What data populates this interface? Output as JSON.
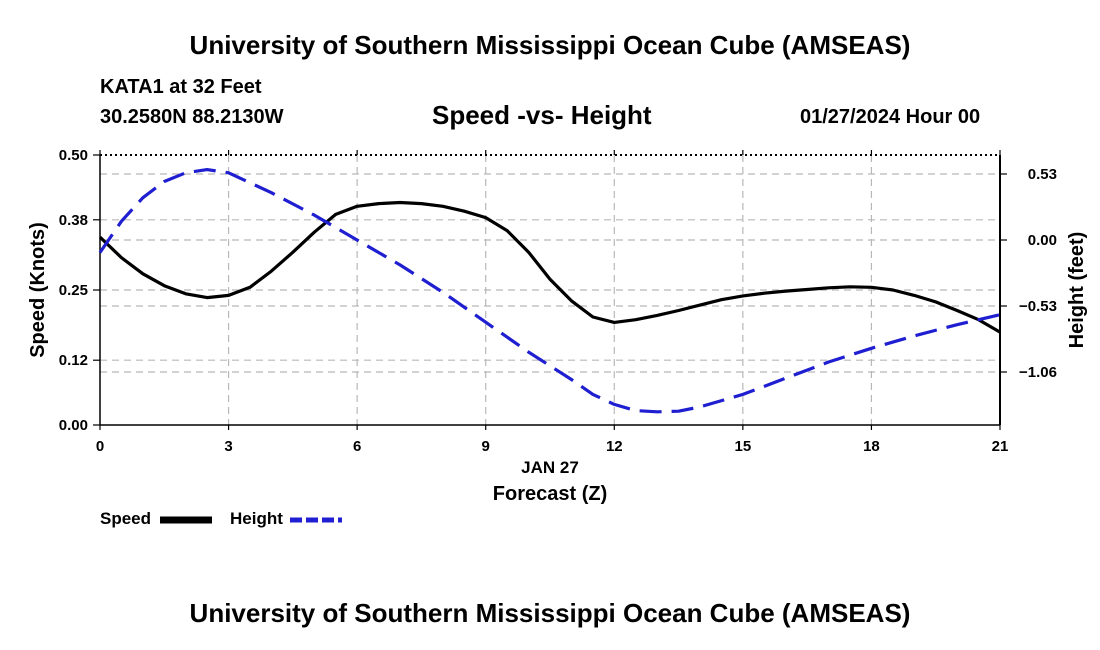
{
  "header": {
    "title": "University of Southern Mississippi Ocean Cube (AMSEAS)",
    "station": "KATA1 at 32 Feet",
    "coordinates": "30.2580N  88.2130W",
    "subtitle": "Speed -vs- Height",
    "datetime": "01/27/2024 Hour 00"
  },
  "footer": {
    "title": "University of Southern Mississippi Ocean Cube (AMSEAS)"
  },
  "chart_data": {
    "type": "line",
    "title": "Speed -vs- Height",
    "xlabel": "Forecast (Z)",
    "xlabel_date": "JAN 27",
    "x_ticks": [
      0,
      3,
      6,
      9,
      12,
      15,
      18,
      21
    ],
    "xlim": [
      0,
      21
    ],
    "left_axis": {
      "label": "Speed (Knots)",
      "ticks": [
        "0.00",
        "0.12",
        "0.25",
        "0.38",
        "0.50"
      ],
      "ylim": [
        0,
        0.5
      ]
    },
    "right_axis": {
      "label": "Height (feet)",
      "ticks": [
        "0.53",
        "0.00",
        "−0.53",
        "−1.06"
      ],
      "tick_values": [
        0.53,
        0.0,
        -0.53,
        -1.06
      ]
    },
    "grid": true,
    "series": [
      {
        "name": "Speed",
        "axis": "left",
        "color": "#000000",
        "style": "solid",
        "x": [
          0,
          0.5,
          1,
          1.5,
          2,
          2.5,
          3,
          3.5,
          4,
          4.5,
          5,
          5.5,
          6,
          6.5,
          7,
          7.5,
          8,
          8.5,
          9,
          9.5,
          10,
          10.5,
          11,
          11.5,
          12,
          12.5,
          13,
          13.5,
          14,
          14.5,
          15,
          15.5,
          16,
          16.5,
          17,
          17.5,
          18,
          18.5,
          19,
          19.5,
          20,
          20.5,
          21
        ],
        "values": [
          0.348,
          0.31,
          0.28,
          0.258,
          0.243,
          0.236,
          0.24,
          0.255,
          0.285,
          0.32,
          0.357,
          0.39,
          0.405,
          0.41,
          0.412,
          0.41,
          0.405,
          0.396,
          0.384,
          0.36,
          0.32,
          0.27,
          0.23,
          0.2,
          0.19,
          0.195,
          0.203,
          0.212,
          0.222,
          0.232,
          0.239,
          0.244,
          0.248,
          0.251,
          0.254,
          0.256,
          0.255,
          0.25,
          0.24,
          0.228,
          0.212,
          0.195,
          0.172
        ]
      },
      {
        "name": "Height",
        "axis": "right",
        "color": "#1f1fd1",
        "style": "dashed",
        "x": [
          0,
          0.5,
          1,
          1.5,
          2,
          2.5,
          3,
          4,
          5,
          6,
          7,
          8,
          9,
          10,
          11,
          11.5,
          12,
          12.5,
          13,
          13.5,
          14,
          15,
          16,
          17,
          18,
          19,
          20,
          21
        ],
        "values": [
          -0.1,
          0.15,
          0.34,
          0.47,
          0.54,
          0.565,
          0.54,
          0.38,
          0.2,
          0.0,
          -0.2,
          -0.42,
          -0.66,
          -0.9,
          -1.12,
          -1.24,
          -1.32,
          -1.37,
          -1.38,
          -1.375,
          -1.34,
          -1.24,
          -1.11,
          -0.98,
          -0.87,
          -0.77,
          -0.68,
          -0.6
        ]
      }
    ]
  }
}
